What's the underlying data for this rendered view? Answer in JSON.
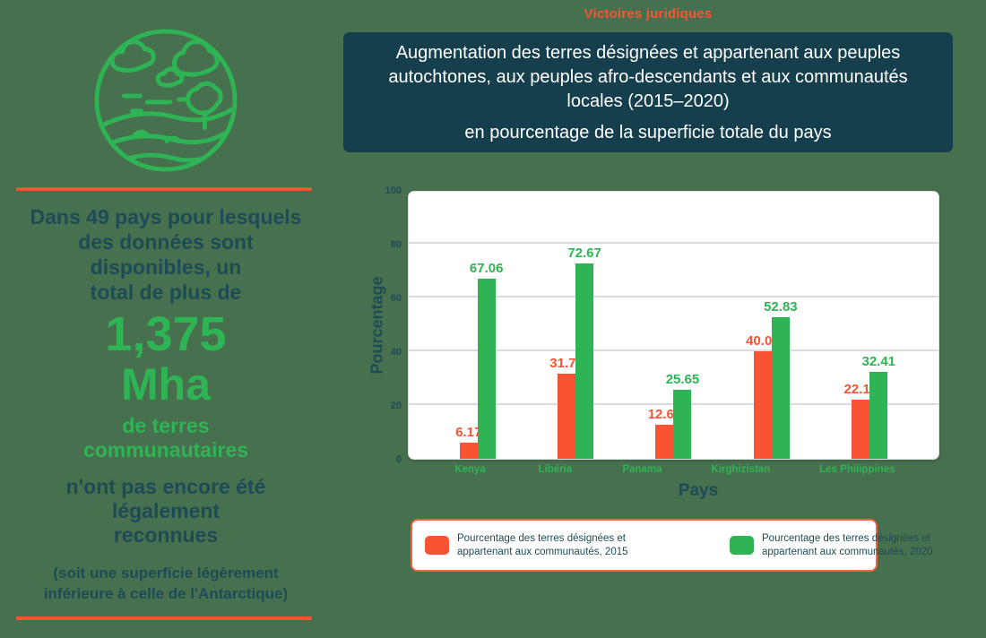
{
  "colors": {
    "background": "#47704E",
    "header_bg": "#163F4D",
    "teal_text": "#1D4B57",
    "orange": "#FA5333",
    "green": "#2FB455",
    "grid": "#D8DCDE",
    "legend_border": "#F5633C"
  },
  "kicker": "Victoires juridiques",
  "header": {
    "title_lines": [
      "Augmentation des terres désignées et appartenant aux peuples",
      "autochtones, aux peuples afro-descendants et aux communautés",
      "locales (2015–2020)"
    ],
    "subtitle": "en pourcentage de la superficie totale du pays"
  },
  "sidebar": {
    "icon": "landscape-circle-icon",
    "intro_lines": [
      "Dans 49 pays pour lesquels",
      "des données sont",
      "disponibles, un",
      "total de plus de"
    ],
    "highlight_number": "1,375",
    "highlight_unit": "Mha",
    "green_lines": [
      "de terres",
      "communautaires"
    ],
    "teal_lines": [
      "n'ont pas encore été",
      "légalement",
      "reconnues"
    ],
    "note_lines": [
      "(soit une superficie légèrement",
      "inférieure à celle de l'Antarctique)"
    ]
  },
  "chart_data": {
    "type": "bar",
    "categories": [
      "Kenya",
      "Libéria",
      "Panama",
      "Kirghizistan",
      "Les Philippines"
    ],
    "series": [
      {
        "name": "Pourcentage des terres désignées et appartenant aux communautés, 2015",
        "color": "#FA5333",
        "values": [
          6.17,
          31.73,
          12.67,
          40.07,
          22.13
        ]
      },
      {
        "name": "Pourcentage des terres désignées et appartenant aux communautés, 2020",
        "color": "#2FB455",
        "values": [
          67.06,
          72.67,
          25.65,
          52.83,
          32.41
        ]
      }
    ],
    "title": "",
    "xlabel": "Pays",
    "ylabel": "Pourcentage",
    "ylim": [
      0,
      100
    ],
    "yticks": [
      0,
      20,
      40,
      60,
      80,
      100
    ],
    "grid": true,
    "legend_position": "bottom"
  }
}
